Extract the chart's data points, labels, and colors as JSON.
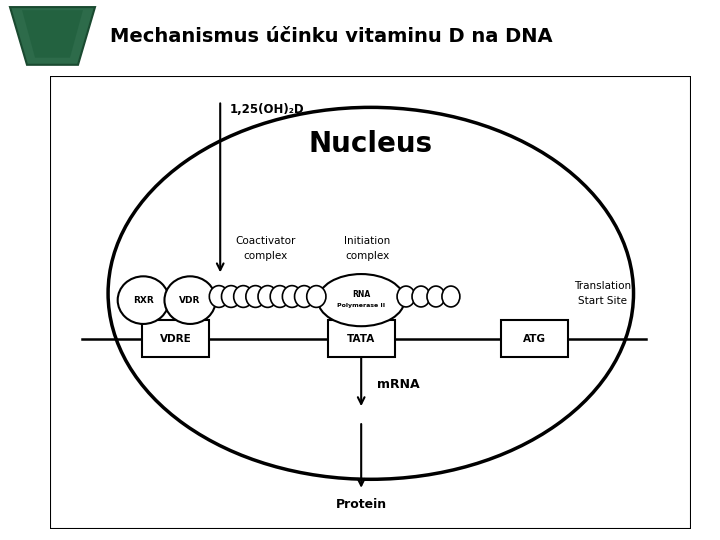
{
  "title": "Mechanismus účinku vitaminu D na DNA",
  "title_fontsize": 14,
  "title_fontweight": "bold",
  "nucleus_label": "Nucleus",
  "nucleus_label_fontsize": 20,
  "vitamin_label": "1,25(OH)₂D",
  "mrna_label": "mRNA",
  "protein_label": "Protein",
  "coactivator_label1": "Coactivator",
  "coactivator_label2": "complex",
  "initiation_label1": "Initiation",
  "initiation_label2": "complex",
  "translation_label1": "Translation",
  "translation_label2": "Start Site",
  "rna_pol_label1": "RNA",
  "rna_pol_label2": "Polymerase II",
  "vdre_label": "VDRE",
  "tata_label": "TATA",
  "atg_label": "ATG",
  "rxr_label": "RXR",
  "vdr_label": "VDR",
  "logo_color": "#2d6b4a",
  "bg_color": "#ffffff",
  "diagram_bg": "#ffffff",
  "border_color": "#000000"
}
